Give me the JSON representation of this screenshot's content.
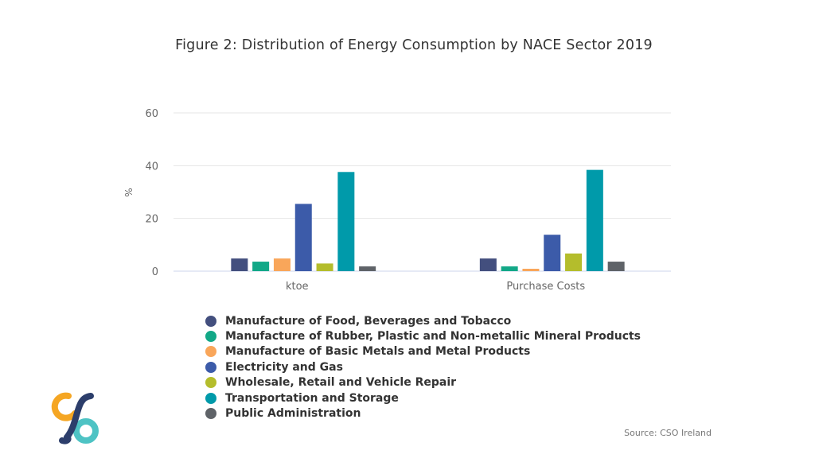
{
  "chart_data": {
    "type": "bar",
    "title": "Figure 2: Distribution of Energy Consumption by NACE Sector 2019",
    "categories": [
      "ktoe",
      "Purchase Costs"
    ],
    "series": [
      {
        "name": "Manufacture of Food, Beverages and Tobacco",
        "color": "#434f7e",
        "values": [
          4.8,
          4.8
        ]
      },
      {
        "name": "Manufacture of Rubber, Plastic and Non-metallic Mineral Products",
        "color": "#12a887",
        "values": [
          3.6,
          1.8
        ]
      },
      {
        "name": "Manufacture of Basic Metals and Metal Products",
        "color": "#f9a65a",
        "values": [
          4.8,
          0.9
        ]
      },
      {
        "name": "Electricity and Gas",
        "color": "#3c5ba9",
        "values": [
          25.5,
          13.8
        ]
      },
      {
        "name": "Wholesale, Retail and Vehicle Repair",
        "color": "#b4bd2c",
        "values": [
          2.9,
          6.7
        ]
      },
      {
        "name": "Transportation and Storage",
        "color": "#009aaa",
        "values": [
          37.6,
          38.4
        ]
      },
      {
        "name": "Public Administration",
        "color": "#5f6368",
        "values": [
          1.8,
          3.6
        ]
      }
    ],
    "ylabel": "%",
    "xlabel": "",
    "ylim": [
      0,
      60
    ],
    "yticks": [
      0,
      20,
      40,
      60
    ],
    "grid": true,
    "legend": "bottom-left"
  },
  "source": "Source: CSO Ireland",
  "logo": {
    "icon": "cso-logo-icon",
    "colors": [
      "#f5a623",
      "#4ec3c4",
      "#2c3e6b"
    ]
  }
}
